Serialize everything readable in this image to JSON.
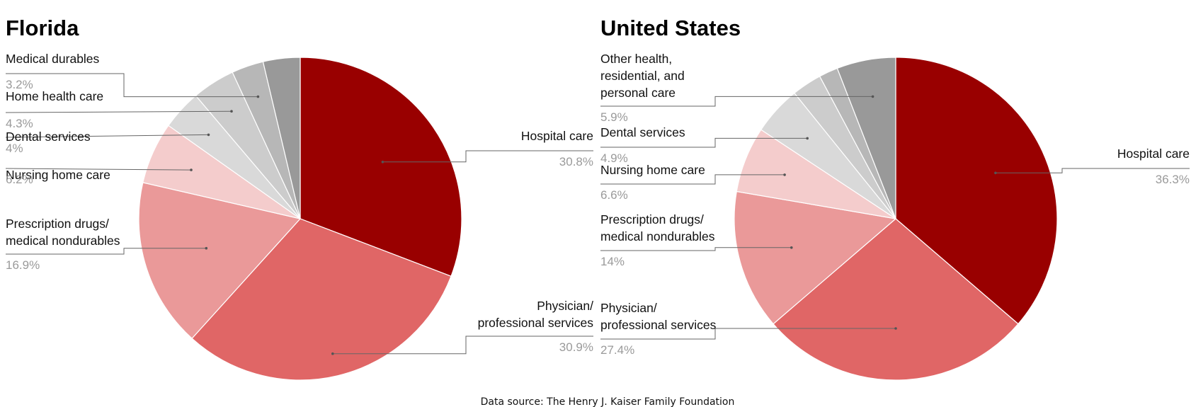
{
  "chart_data": [
    {
      "type": "pie",
      "title": "Florida",
      "slices": [
        {
          "label": "Hospital care",
          "value": 30.8,
          "display": "30.8%",
          "color": "#990000"
        },
        {
          "label": "Physician/\nprofessional services",
          "value": 30.9,
          "display": "30.9%",
          "color": "#e06666"
        },
        {
          "label": "Prescription drugs/\nmedical nondurables",
          "value": 16.9,
          "display": "16.9%",
          "color": "#ea9999"
        },
        {
          "label": "Nursing home care",
          "value": 6.2,
          "display": "6.2%",
          "color": "#f4cccc"
        },
        {
          "label": "Dental services",
          "value": 4.0,
          "display": "4%",
          "color": "#d9d9d9"
        },
        {
          "label": "Home health care",
          "value": 4.3,
          "display": "4.3%",
          "color": "#cccccc"
        },
        {
          "label": "Medical durables",
          "value": 3.2,
          "display": "3.2%",
          "color": "#b7b7b7"
        },
        {
          "label": "",
          "value": 3.7,
          "display": "",
          "color": "#999999"
        }
      ]
    },
    {
      "type": "pie",
      "title": "United States",
      "slices": [
        {
          "label": "Hospital care",
          "value": 36.3,
          "display": "36.3%",
          "color": "#990000"
        },
        {
          "label": "Physician/\nprofessional services",
          "value": 27.4,
          "display": "27.4%",
          "color": "#e06666"
        },
        {
          "label": "Prescription drugs/\nmedical nondurables",
          "value": 14.0,
          "display": "14%",
          "color": "#ea9999"
        },
        {
          "label": "Nursing home care",
          "value": 6.6,
          "display": "6.6%",
          "color": "#f4cccc"
        },
        {
          "label": "Dental services",
          "value": 4.9,
          "display": "4.9%",
          "color": "#d9d9d9"
        },
        {
          "label": "",
          "value": 3.0,
          "display": "",
          "color": "#cccccc"
        },
        {
          "label": "",
          "value": 1.9,
          "display": "",
          "color": "#b7b7b7"
        },
        {
          "label": "Other health,\nresidential, and\npersonal care",
          "value": 5.9,
          "display": "5.9%",
          "color": "#999999"
        }
      ]
    }
  ],
  "source": "Data source: The Henry J. Kaiser Family Foundation"
}
